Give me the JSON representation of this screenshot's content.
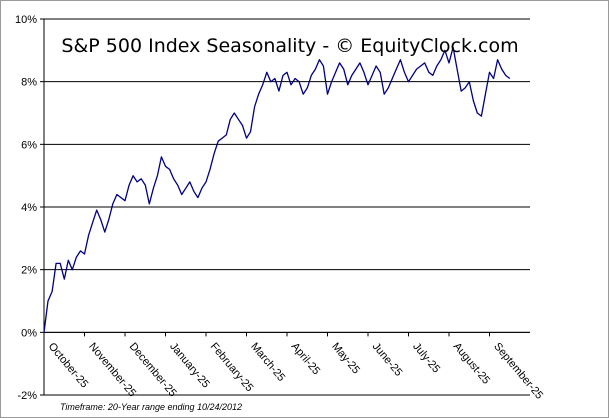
{
  "chart_data": {
    "type": "line",
    "title": "S&P 500 Index Seasonality - © EquityClock.com",
    "footnote": "Timeframe: 20-Year range ending 10/24/2012",
    "xlabel": "",
    "ylabel": "",
    "ylim": [
      -2,
      10
    ],
    "yticks": [
      -2,
      0,
      2,
      4,
      6,
      8,
      10
    ],
    "ytick_labels": [
      "-2%",
      "0%",
      "2%",
      "4%",
      "6%",
      "8%",
      "10%"
    ],
    "grid": true,
    "categories": [
      "October-25",
      "November-25",
      "December-25",
      "January-25",
      "February-25",
      "March-25",
      "April-25",
      "May-25",
      "June-25",
      "July-25",
      "August-25",
      "September-25"
    ],
    "series": [
      {
        "name": "S&P 500 Seasonality",
        "color": "#000080",
        "x": [
          0,
          0.1,
          0.2,
          0.3,
          0.4,
          0.5,
          0.6,
          0.7,
          0.8,
          0.9,
          1.0,
          1.1,
          1.2,
          1.3,
          1.4,
          1.5,
          1.6,
          1.7,
          1.8,
          1.9,
          2.0,
          2.1,
          2.2,
          2.3,
          2.4,
          2.5,
          2.6,
          2.7,
          2.8,
          2.9,
          3.0,
          3.1,
          3.2,
          3.3,
          3.4,
          3.5,
          3.6,
          3.7,
          3.8,
          3.9,
          4.0,
          4.1,
          4.2,
          4.3,
          4.4,
          4.5,
          4.6,
          4.7,
          4.8,
          4.9,
          5.0,
          5.1,
          5.2,
          5.3,
          5.4,
          5.5,
          5.6,
          5.7,
          5.8,
          5.9,
          6.0,
          6.1,
          6.2,
          6.3,
          6.4,
          6.5,
          6.6,
          6.7,
          6.8,
          6.9,
          7.0,
          7.1,
          7.2,
          7.3,
          7.4,
          7.5,
          7.6,
          7.7,
          7.8,
          7.9,
          8.0,
          8.1,
          8.2,
          8.3,
          8.4,
          8.5,
          8.6,
          8.7,
          8.8,
          8.9,
          9.0,
          9.1,
          9.2,
          9.3,
          9.4,
          9.5,
          9.6,
          9.7,
          9.8,
          9.9,
          10.0,
          10.1,
          10.2,
          10.3,
          10.4,
          10.5,
          10.6,
          10.7,
          10.8,
          10.9,
          11.0,
          11.1,
          11.2,
          11.3,
          11.4,
          11.5
        ],
        "values": [
          0.0,
          1.0,
          1.3,
          2.2,
          2.2,
          1.7,
          2.3,
          2.0,
          2.4,
          2.6,
          2.5,
          3.1,
          3.5,
          3.9,
          3.6,
          3.2,
          3.6,
          4.1,
          4.4,
          4.3,
          4.2,
          4.7,
          5.0,
          4.8,
          4.9,
          4.7,
          4.1,
          4.6,
          5.0,
          5.6,
          5.3,
          5.2,
          4.9,
          4.7,
          4.4,
          4.6,
          4.8,
          4.5,
          4.3,
          4.6,
          4.8,
          5.2,
          5.7,
          6.1,
          6.2,
          6.3,
          6.8,
          7.0,
          6.8,
          6.6,
          6.2,
          6.4,
          7.2,
          7.6,
          7.9,
          8.3,
          8.0,
          8.1,
          7.7,
          8.2,
          8.3,
          7.9,
          8.1,
          8.0,
          7.6,
          7.8,
          8.2,
          8.4,
          8.7,
          8.5,
          7.6,
          8.0,
          8.3,
          8.6,
          8.4,
          7.9,
          8.2,
          8.4,
          8.6,
          8.3,
          7.9,
          8.2,
          8.5,
          8.3,
          7.6,
          7.8,
          8.1,
          8.4,
          8.7,
          8.3,
          8.0,
          8.2,
          8.4,
          8.5,
          8.6,
          8.3,
          8.2,
          8.5,
          8.7,
          9.0,
          8.6,
          9.1,
          8.4,
          7.7,
          7.8,
          8.0,
          7.4,
          7.0,
          6.9,
          7.6,
          8.3,
          8.1,
          8.7,
          8.4,
          8.2,
          8.1
        ]
      }
    ]
  }
}
